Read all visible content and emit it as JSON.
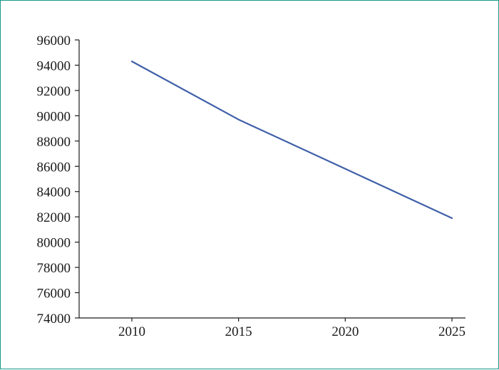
{
  "chart_data": {
    "type": "line",
    "title": "",
    "xlabel": "",
    "ylabel": "",
    "x": [
      2010,
      2015,
      2020,
      2025
    ],
    "x_tick_labels": [
      "2010",
      "2015",
      "2020",
      "2025"
    ],
    "y_tick_labels": [
      "96000",
      "94000",
      "92000",
      "90000",
      "88000",
      "86000",
      "84000",
      "82000",
      "80000",
      "78000",
      "76000",
      "74000"
    ],
    "ylim": [
      74000,
      96000
    ],
    "series": [
      {
        "values": [
          94300,
          89700,
          85800,
          81900
        ],
        "color": "#3f5fa8"
      }
    ],
    "grid": false,
    "legend": "none"
  }
}
